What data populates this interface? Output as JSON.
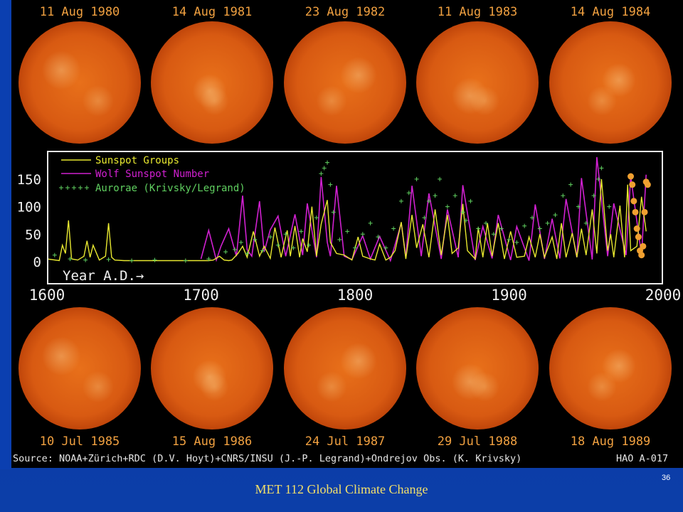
{
  "slide": {
    "footer": "MET 112 Global Climate Change",
    "slide_number": "36"
  },
  "figure": {
    "source": "Source: NOAA+Zürich+RDC (D.V. Hoyt)+CNRS/INSU (J.-P. Legrand)+Ondrejov Obs. (K. Krivsky)",
    "credit": "HAO A-017",
    "sun_images_top": [
      {
        "date": "11 Aug 1980"
      },
      {
        "date": "14 Aug 1981"
      },
      {
        "date": "23 Aug 1982"
      },
      {
        "date": "11 Aug 1983"
      },
      {
        "date": "14 Aug 1984"
      }
    ],
    "sun_images_bottom": [
      {
        "date": "10 Jul 1985"
      },
      {
        "date": "15 Aug 1986"
      },
      {
        "date": "24 Jul 1987"
      },
      {
        "date": "29 Jul 1988"
      },
      {
        "date": "18 Aug 1989"
      }
    ],
    "colors": {
      "sunspot_groups": "#e8e830",
      "wolf_number": "#d020d0",
      "aurorae": "#60d060",
      "recent_points": "#f0a030",
      "sun_core": "#e8701a",
      "sun_edge": "#7a1a00"
    }
  },
  "chart_data": {
    "type": "line",
    "title": "",
    "xlabel": "Year A.D.",
    "ylabel": "",
    "xlim": [
      1600,
      2000
    ],
    "ylim": [
      0,
      190
    ],
    "x_ticks": [
      1600,
      1700,
      1800,
      1900,
      2000
    ],
    "y_ticks": [
      0,
      50,
      100,
      150
    ],
    "grid": false,
    "legend_position": "top-left",
    "legend": [
      "Sunspot Groups",
      "Wolf Sunspot Number",
      "Aurorae (Krivsky/Legrand)"
    ],
    "series": [
      {
        "name": "Sunspot Groups",
        "x": [
          1600,
          1608,
          1610,
          1612,
          1614,
          1616,
          1620,
          1624,
          1626,
          1628,
          1630,
          1634,
          1638,
          1640,
          1642,
          1644,
          1650,
          1660,
          1670,
          1680,
          1690,
          1700,
          1705,
          1708,
          1712,
          1715,
          1718,
          1720,
          1724,
          1727,
          1730,
          1734,
          1738,
          1741,
          1745,
          1748,
          1752,
          1756,
          1758,
          1761,
          1764,
          1766,
          1769,
          1772,
          1775,
          1778,
          1782,
          1784,
          1788,
          1793,
          1798,
          1802,
          1805,
          1810,
          1813,
          1816,
          1820,
          1823,
          1826,
          1830,
          1833,
          1837,
          1840,
          1844,
          1848,
          1852,
          1856,
          1860,
          1863,
          1867,
          1870,
          1873,
          1878,
          1880,
          1883,
          1886,
          1889,
          1893,
          1897,
          1901,
          1905,
          1910,
          1913,
          1917,
          1920,
          1923,
          1928,
          1931,
          1934,
          1937,
          1941,
          1944,
          1947,
          1950,
          1954,
          1957,
          1960,
          1964,
          1966,
          1968,
          1972,
          1975,
          1977,
          1979,
          1983,
          1986,
          1989
        ],
        "values": [
          5,
          2,
          30,
          15,
          75,
          5,
          3,
          10,
          38,
          8,
          30,
          3,
          10,
          70,
          8,
          3,
          2,
          2,
          2,
          2,
          2,
          2,
          2,
          3,
          10,
          3,
          2,
          3,
          15,
          28,
          8,
          55,
          10,
          28,
          6,
          62,
          8,
          57,
          10,
          65,
          8,
          42,
          18,
          100,
          10,
          68,
          112,
          35,
          15,
          12,
          3,
          45,
          10,
          5,
          3,
          32,
          3,
          8,
          20,
          72,
          5,
          85,
          25,
          68,
          8,
          95,
          12,
          85,
          15,
          25,
          105,
          20,
          5,
          62,
          8,
          70,
          10,
          70,
          5,
          55,
          8,
          10,
          45,
          8,
          50,
          8,
          45,
          5,
          70,
          8,
          52,
          8,
          60,
          12,
          95,
          15,
          150,
          20,
          50,
          8,
          102,
          8,
          140,
          20,
          28,
          118,
          55
        ]
      },
      {
        "name": "Wolf Sunspot Number",
        "x": [
          1700,
          1705,
          1710,
          1713,
          1718,
          1723,
          1727,
          1730,
          1733,
          1738,
          1741,
          1745,
          1750,
          1755,
          1761,
          1766,
          1769,
          1775,
          1778,
          1782,
          1784,
          1788,
          1793,
          1798,
          1805,
          1810,
          1816,
          1823,
          1830,
          1833,
          1837,
          1843,
          1848,
          1856,
          1860,
          1867,
          1870,
          1878,
          1883,
          1889,
          1893,
          1901,
          1905,
          1913,
          1917,
          1923,
          1928,
          1933,
          1937,
          1944,
          1947,
          1954,
          1957,
          1964,
          1968,
          1976,
          1979,
          1986,
          1989
        ],
        "values": [
          5,
          57,
          3,
          28,
          60,
          10,
          120,
          22,
          10,
          110,
          18,
          58,
          83,
          10,
          86,
          12,
          106,
          8,
          154,
          35,
          10,
          138,
          10,
          4,
          47,
          5,
          46,
          2,
          70,
          8,
          138,
          10,
          124,
          5,
          95,
          8,
          139,
          3,
          64,
          6,
          85,
          3,
          64,
          2,
          104,
          5,
          78,
          6,
          114,
          8,
          152,
          4,
          190,
          10,
          106,
          12,
          155,
          12,
          158
        ]
      },
      {
        "name": "Aurorae (Krivsky/Legrand)",
        "x": [
          1605,
          1615,
          1625,
          1640,
          1655,
          1670,
          1690,
          1705,
          1716,
          1722,
          1726,
          1730,
          1735,
          1740,
          1745,
          1750,
          1755,
          1760,
          1765,
          1770,
          1775,
          1778,
          1780,
          1782,
          1784,
          1786,
          1790,
          1795,
          1800,
          1805,
          1810,
          1815,
          1820,
          1825,
          1830,
          1835,
          1840,
          1845,
          1848,
          1852,
          1855,
          1860,
          1865,
          1870,
          1872,
          1875,
          1880,
          1885,
          1890,
          1895,
          1900,
          1905,
          1910,
          1915,
          1920,
          1925,
          1930,
          1935,
          1940,
          1945,
          1950,
          1955,
          1958,
          1960,
          1965
        ],
        "values": [
          12,
          5,
          3,
          4,
          2,
          3,
          2,
          5,
          18,
          22,
          35,
          15,
          40,
          20,
          45,
          30,
          50,
          25,
          55,
          30,
          80,
          160,
          170,
          180,
          140,
          90,
          40,
          55,
          25,
          50,
          70,
          45,
          25,
          60,
          110,
          125,
          150,
          80,
          110,
          120,
          150,
          100,
          120,
          90,
          75,
          110,
          60,
          70,
          50,
          60,
          40,
          35,
          65,
          80,
          60,
          70,
          85,
          120,
          140,
          100,
          70,
          120,
          150,
          170,
          100
        ]
      },
      {
        "name": "",
        "x": [
          1979,
          1980,
          1981,
          1982,
          1983,
          1984,
          1985,
          1986,
          1987,
          1988,
          1989,
          1990
        ],
        "values": [
          155,
          140,
          110,
          90,
          60,
          45,
          20,
          12,
          28,
          90,
          145,
          140
        ]
      }
    ]
  }
}
